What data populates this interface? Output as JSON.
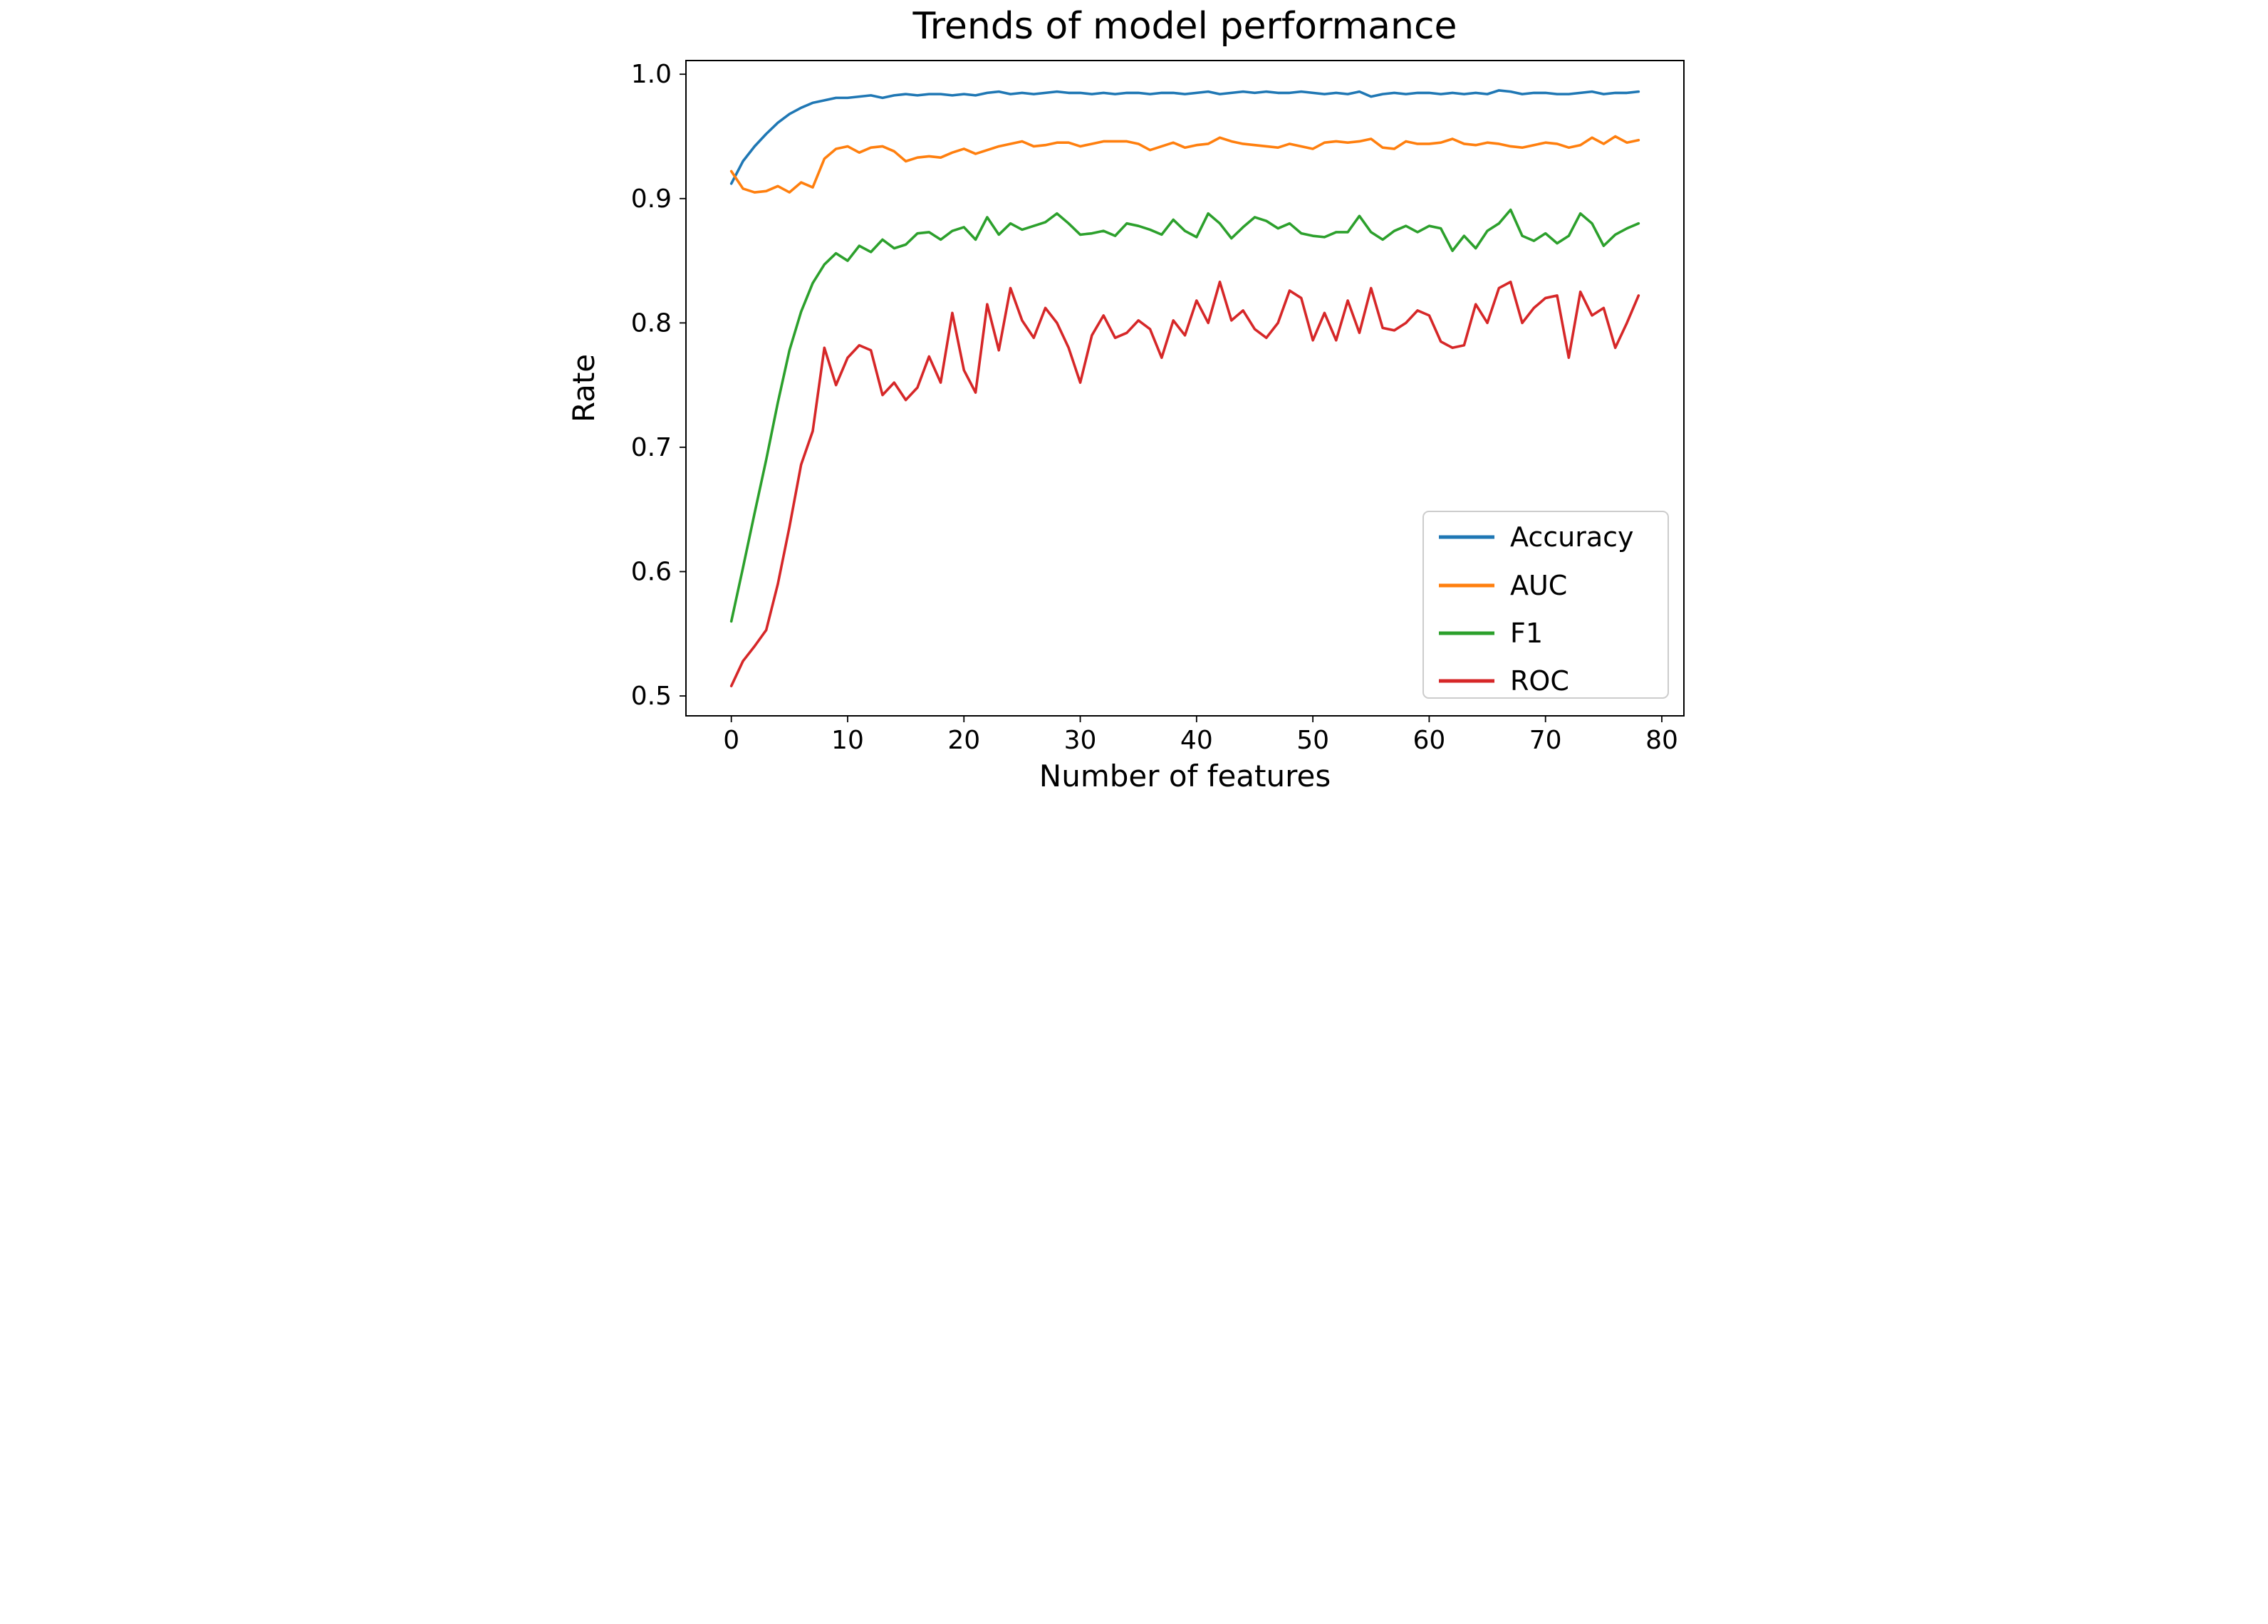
{
  "chart_data": {
    "type": "line",
    "title": "Trends of model performance",
    "xlabel": "Number of features",
    "ylabel": "Rate",
    "xlim": [
      -3.9,
      81.9
    ],
    "ylim": [
      0.484,
      1.011
    ],
    "x_ticks": [
      0,
      10,
      20,
      30,
      40,
      50,
      60,
      70,
      80
    ],
    "y_ticks": [
      0.5,
      0.6,
      0.7,
      0.8,
      0.9,
      1.0
    ],
    "grid": false,
    "legend_position": "lower right",
    "x_start": 0,
    "x_step": 1,
    "axis_color": "#000000",
    "background_color": "#ffffff",
    "legend_edge_color": "#cccccc",
    "series": [
      {
        "name": "Accuracy",
        "color": "#1f77b4",
        "values": [
          0.912,
          0.93,
          0.942,
          0.952,
          0.961,
          0.968,
          0.973,
          0.977,
          0.979,
          0.981,
          0.981,
          0.982,
          0.983,
          0.981,
          0.983,
          0.984,
          0.983,
          0.984,
          0.984,
          0.983,
          0.984,
          0.983,
          0.985,
          0.986,
          0.984,
          0.985,
          0.984,
          0.985,
          0.986,
          0.985,
          0.985,
          0.984,
          0.985,
          0.984,
          0.985,
          0.985,
          0.984,
          0.985,
          0.985,
          0.984,
          0.985,
          0.986,
          0.984,
          0.985,
          0.986,
          0.985,
          0.986,
          0.985,
          0.985,
          0.986,
          0.985,
          0.984,
          0.985,
          0.984,
          0.986,
          0.982,
          0.984,
          0.985,
          0.984,
          0.985,
          0.985,
          0.984,
          0.985,
          0.984,
          0.985,
          0.984,
          0.987,
          0.986,
          0.984,
          0.985,
          0.985,
          0.984,
          0.984,
          0.985,
          0.986,
          0.984,
          0.985,
          0.985,
          0.986
        ]
      },
      {
        "name": "AUC",
        "color": "#ff7f0e",
        "values": [
          0.922,
          0.908,
          0.905,
          0.906,
          0.91,
          0.905,
          0.913,
          0.909,
          0.932,
          0.94,
          0.942,
          0.937,
          0.941,
          0.942,
          0.938,
          0.93,
          0.933,
          0.934,
          0.933,
          0.937,
          0.94,
          0.936,
          0.939,
          0.942,
          0.944,
          0.946,
          0.942,
          0.943,
          0.945,
          0.945,
          0.942,
          0.944,
          0.946,
          0.946,
          0.946,
          0.944,
          0.939,
          0.942,
          0.945,
          0.941,
          0.943,
          0.944,
          0.949,
          0.946,
          0.944,
          0.943,
          0.942,
          0.941,
          0.944,
          0.942,
          0.94,
          0.945,
          0.946,
          0.945,
          0.946,
          0.948,
          0.941,
          0.94,
          0.946,
          0.944,
          0.944,
          0.945,
          0.948,
          0.944,
          0.943,
          0.945,
          0.944,
          0.942,
          0.941,
          0.943,
          0.945,
          0.944,
          0.941,
          0.943,
          0.949,
          0.944,
          0.95,
          0.945,
          0.947
        ]
      },
      {
        "name": "F1",
        "color": "#2ca02c",
        "values": [
          0.56,
          0.603,
          0.647,
          0.69,
          0.736,
          0.778,
          0.809,
          0.832,
          0.847,
          0.856,
          0.85,
          0.862,
          0.857,
          0.867,
          0.86,
          0.863,
          0.872,
          0.873,
          0.867,
          0.874,
          0.877,
          0.867,
          0.885,
          0.871,
          0.88,
          0.875,
          0.878,
          0.881,
          0.888,
          0.88,
          0.871,
          0.872,
          0.874,
          0.87,
          0.88,
          0.878,
          0.875,
          0.871,
          0.883,
          0.874,
          0.869,
          0.888,
          0.88,
          0.868,
          0.877,
          0.885,
          0.882,
          0.876,
          0.88,
          0.872,
          0.87,
          0.869,
          0.873,
          0.873,
          0.886,
          0.873,
          0.867,
          0.874,
          0.878,
          0.873,
          0.878,
          0.876,
          0.858,
          0.87,
          0.86,
          0.874,
          0.88,
          0.891,
          0.87,
          0.866,
          0.872,
          0.864,
          0.87,
          0.888,
          0.88,
          0.862,
          0.871,
          0.876,
          0.88
        ]
      },
      {
        "name": "ROC",
        "color": "#d62728",
        "values": [
          0.508,
          0.528,
          0.54,
          0.553,
          0.59,
          0.636,
          0.686,
          0.713,
          0.78,
          0.75,
          0.772,
          0.782,
          0.778,
          0.742,
          0.752,
          0.738,
          0.748,
          0.773,
          0.752,
          0.808,
          0.762,
          0.744,
          0.815,
          0.778,
          0.828,
          0.802,
          0.788,
          0.812,
          0.8,
          0.78,
          0.752,
          0.79,
          0.806,
          0.788,
          0.792,
          0.802,
          0.795,
          0.772,
          0.802,
          0.79,
          0.818,
          0.8,
          0.833,
          0.802,
          0.81,
          0.795,
          0.788,
          0.8,
          0.826,
          0.82,
          0.786,
          0.808,
          0.786,
          0.818,
          0.792,
          0.828,
          0.796,
          0.794,
          0.8,
          0.81,
          0.806,
          0.785,
          0.78,
          0.782,
          0.815,
          0.8,
          0.828,
          0.833,
          0.8,
          0.812,
          0.82,
          0.822,
          0.772,
          0.825,
          0.806,
          0.812,
          0.78,
          0.8,
          0.822
        ]
      }
    ]
  }
}
